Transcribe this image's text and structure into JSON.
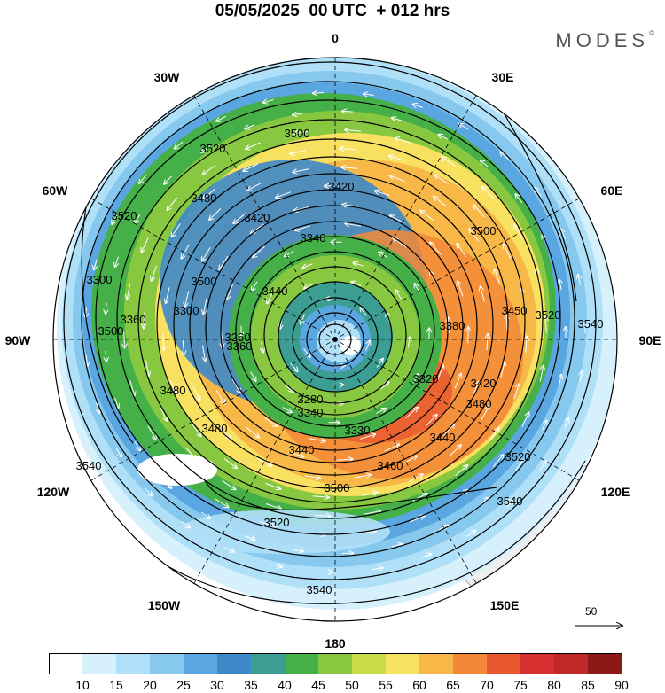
{
  "header": {
    "title": "05/05/2025  00 UTC  + 012 hrs",
    "brand": "MODES",
    "brand_mark": "©"
  },
  "map": {
    "projection": "south-polar-stereographic",
    "longitude_labels": {
      "top": "0",
      "top_left": "30W",
      "top_right": "30E",
      "upper_left": "60W",
      "upper_right": "60E",
      "left": "90W",
      "right": "90E",
      "lower_left": "120W",
      "lower_right": "120E",
      "bottom_left": "150W",
      "bottom_right": "150E",
      "bottom": "180"
    },
    "contour_labels": [
      "3500",
      "3520",
      "3520",
      "3420",
      "3480",
      "3420",
      "3340",
      "3500",
      "3300",
      "3500",
      "3440",
      "3300",
      "3360",
      "3260",
      "3380",
      "3450",
      "3520",
      "3540",
      "3500",
      "3480",
      "3360",
      "3280",
      "3320",
      "3420",
      "3480",
      "3340",
      "3330",
      "3440",
      "3480",
      "3440",
      "3460",
      "3520",
      "3540",
      "3500",
      "3540",
      "3520",
      "3540"
    ],
    "colors": {
      "land": "#efefef",
      "coast": "#8c8c8c",
      "grid": "#000000",
      "contour": "#000000",
      "vector": "#ffffff"
    }
  },
  "reference_vector": {
    "label": "50"
  },
  "colorbar": {
    "labels": [
      "10",
      "15",
      "20",
      "25",
      "30",
      "35",
      "40",
      "45",
      "50",
      "55",
      "60",
      "65",
      "70",
      "75",
      "80",
      "85",
      "90"
    ],
    "colors": [
      "#ffffff",
      "#d6f0fc",
      "#b0e0f8",
      "#86c8ee",
      "#5aa6e0",
      "#3d88c8",
      "#3c9e92",
      "#45b048",
      "#88c840",
      "#c8dc48",
      "#f8e060",
      "#f8b848",
      "#f48838",
      "#e85830",
      "#d83030",
      "#c02828",
      "#8c1818"
    ]
  }
}
